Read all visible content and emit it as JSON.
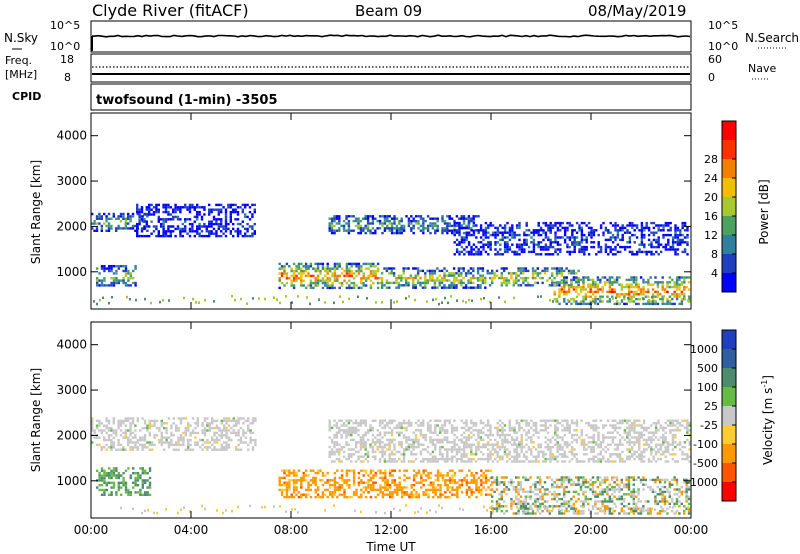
{
  "header": {
    "station": "Clyde River (fitACF)",
    "beam": "Beam 09",
    "date": "08/May/2019"
  },
  "nsky_panel": {
    "left_label": "N.Sky",
    "right_label": "N.Search",
    "left_ticks": [
      "10^5",
      "10^0"
    ],
    "right_ticks": [
      "10^5",
      "10^0"
    ]
  },
  "freq_panel": {
    "left_label_1": "Freq.",
    "left_label_2": "[MHz]",
    "right_label": "Nave",
    "left_ticks": [
      "18",
      "8"
    ],
    "right_ticks": [
      "60",
      "0"
    ]
  },
  "cpid_panel": {
    "label": "CPID",
    "text": "twofsound (1-min) -3505"
  },
  "chart_data": [
    {
      "type": "heatmap",
      "name": "power",
      "ylabel": "Slant Range [km]",
      "xlabel": "",
      "x_ticks": [
        "00:00",
        "04:00",
        "08:00",
        "12:00",
        "16:00",
        "20:00",
        "00:00"
      ],
      "y_ticks": [
        "1000",
        "2000",
        "3000",
        "4000"
      ],
      "xlim_hours": [
        0,
        24
      ],
      "ylim_km": [
        180,
        4500
      ],
      "colorbar": {
        "label": "Power [dB]",
        "ticks": [
          "4",
          "8",
          "12",
          "16",
          "20",
          "24",
          "28"
        ],
        "colors": [
          "#0000ff",
          "#1f3fbf",
          "#2f7f9f",
          "#4ca060",
          "#a8c830",
          "#f0c000",
          "#f08000",
          "#ff3000",
          "#ff0000"
        ]
      },
      "bands": [
        {
          "t0": 0.0,
          "t1": 2.3,
          "r0": 1900,
          "r1": 2300,
          "level": 0.35
        },
        {
          "t0": 0.2,
          "t1": 1.8,
          "r0": 700,
          "r1": 1150,
          "level": 0.45
        },
        {
          "t0": 1.8,
          "t1": 6.6,
          "r0": 1800,
          "r1": 2500,
          "level": 0.1
        },
        {
          "t0": 7.5,
          "t1": 11.5,
          "r0": 650,
          "r1": 1200,
          "level": 0.75
        },
        {
          "t0": 9.5,
          "t1": 15.5,
          "r0": 1850,
          "r1": 2250,
          "level": 0.35
        },
        {
          "t0": 11.5,
          "t1": 16.0,
          "r0": 650,
          "r1": 1100,
          "level": 0.55
        },
        {
          "t0": 16.0,
          "t1": 19.5,
          "r0": 700,
          "r1": 1100,
          "level": 0.6
        },
        {
          "t0": 18.5,
          "t1": 23.9,
          "r0": 300,
          "r1": 900,
          "level": 0.75
        },
        {
          "t0": 14.5,
          "t1": 23.9,
          "r0": 1400,
          "r1": 2100,
          "level": 0.15
        }
      ]
    },
    {
      "type": "heatmap",
      "name": "velocity",
      "ylabel": "Slant Range [km]",
      "xlabel": "Time UT",
      "x_ticks": [
        "00:00",
        "04:00",
        "08:00",
        "12:00",
        "16:00",
        "20:00",
        "00:00"
      ],
      "y_ticks": [
        "1000",
        "2000",
        "3000",
        "4000"
      ],
      "xlim_hours": [
        0,
        24
      ],
      "ylim_km": [
        180,
        4500
      ],
      "colorbar": {
        "label": "Velocity [m s^-1]",
        "ticks": [
          "1000",
          "500",
          "100",
          "25",
          "-25",
          "-100",
          "-500",
          "-1000"
        ],
        "colors": [
          "#1f3fbf",
          "#2f5f9f",
          "#4c8c6c",
          "#66bb44",
          "#c8c8c8",
          "#ffcc33",
          "#ff9900",
          "#ff5500",
          "#ff0000"
        ]
      },
      "bands": [
        {
          "t0": 0.0,
          "t1": 6.6,
          "r0": 1700,
          "r1": 2400,
          "value": "gray"
        },
        {
          "t0": 0.2,
          "t1": 2.4,
          "r0": 700,
          "r1": 1300,
          "value": "green"
        },
        {
          "t0": 7.5,
          "t1": 16.0,
          "r0": 650,
          "r1": 1250,
          "value": "orange"
        },
        {
          "t0": 9.5,
          "t1": 23.9,
          "r0": 1450,
          "r1": 2350,
          "value": "gray"
        },
        {
          "t0": 16.0,
          "t1": 23.9,
          "r0": 300,
          "r1": 1100,
          "value": "mixed"
        }
      ]
    }
  ]
}
